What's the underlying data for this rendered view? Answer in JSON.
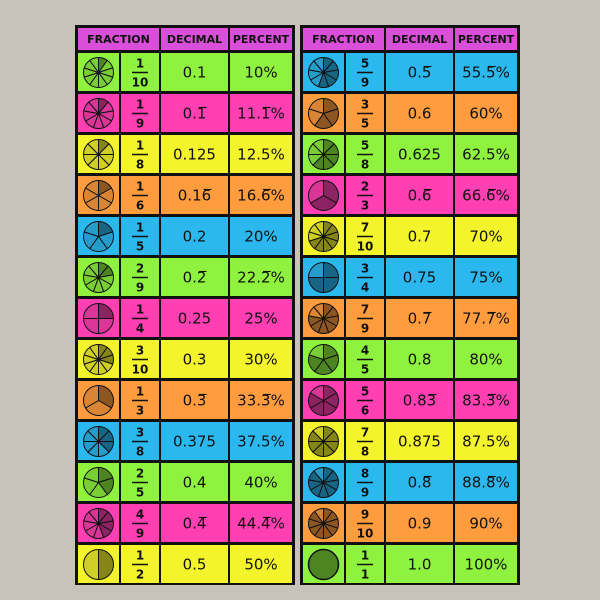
{
  "tables": [
    {
      "headers": [
        "FRACTION",
        "DECIMAL",
        "PERCENT"
      ],
      "header_color": "#d94fd9",
      "rows": [
        {
          "numerator": 1,
          "denominator": 10,
          "decimal": "0.1",
          "percent": "10%",
          "color": "#8ef23f"
        },
        {
          "numerator": 1,
          "denominator": 9,
          "decimal": "0.1̅",
          "percent": "11.1̅%",
          "color": "#ff3fb2"
        },
        {
          "numerator": 1,
          "denominator": 8,
          "decimal": "0.125",
          "percent": "12.5%",
          "color": "#f4f42c"
        },
        {
          "numerator": 1,
          "denominator": 6,
          "decimal": "0.16̅",
          "percent": "16.6̅%",
          "color": "#ff9c3e"
        },
        {
          "numerator": 1,
          "denominator": 5,
          "decimal": "0.2",
          "percent": "20%",
          "color": "#2bb8ee"
        },
        {
          "numerator": 2,
          "denominator": 9,
          "decimal": "0.2̅",
          "percent": "22.2̅%",
          "color": "#8ef23f"
        },
        {
          "numerator": 1,
          "denominator": 4,
          "decimal": "0.25",
          "percent": "25%",
          "color": "#ff3fb2"
        },
        {
          "numerator": 3,
          "denominator": 10,
          "decimal": "0.3",
          "percent": "30%",
          "color": "#f4f42c"
        },
        {
          "numerator": 1,
          "denominator": 3,
          "decimal": "0.3̅",
          "percent": "33.3̅%",
          "color": "#ff9c3e"
        },
        {
          "numerator": 3,
          "denominator": 8,
          "decimal": "0.375",
          "percent": "37.5%",
          "color": "#2bb8ee"
        },
        {
          "numerator": 2,
          "denominator": 5,
          "decimal": "0.4",
          "percent": "40%",
          "color": "#8ef23f"
        },
        {
          "numerator": 4,
          "denominator": 9,
          "decimal": "0.4̅",
          "percent": "44.4̅%",
          "color": "#ff3fb2"
        },
        {
          "numerator": 1,
          "denominator": 2,
          "decimal": "0.5",
          "percent": "50%",
          "color": "#f4f42c"
        }
      ]
    },
    {
      "headers": [
        "FRACTION",
        "DECIMAL",
        "PERCENT"
      ],
      "header_color": "#d94fd9",
      "rows": [
        {
          "numerator": 5,
          "denominator": 9,
          "decimal": "0.5̅",
          "percent": "55.5̅%",
          "color": "#2bb8ee"
        },
        {
          "numerator": 3,
          "denominator": 5,
          "decimal": "0.6",
          "percent": "60%",
          "color": "#ff9c3e"
        },
        {
          "numerator": 5,
          "denominator": 8,
          "decimal": "0.625",
          "percent": "62.5%",
          "color": "#8ef23f"
        },
        {
          "numerator": 2,
          "denominator": 3,
          "decimal": "0.6̅",
          "percent": "66.6̅%",
          "color": "#ff3fb2"
        },
        {
          "numerator": 7,
          "denominator": 10,
          "decimal": "0.7",
          "percent": "70%",
          "color": "#f4f42c"
        },
        {
          "numerator": 3,
          "denominator": 4,
          "decimal": "0.75",
          "percent": "75%",
          "color": "#2bb8ee"
        },
        {
          "numerator": 7,
          "denominator": 9,
          "decimal": "0.7̅",
          "percent": "77.7̅%",
          "color": "#ff9c3e"
        },
        {
          "numerator": 4,
          "denominator": 5,
          "decimal": "0.8",
          "percent": "80%",
          "color": "#8ef23f"
        },
        {
          "numerator": 5,
          "denominator": 6,
          "decimal": "0.83̅",
          "percent": "83.3̅%",
          "color": "#ff3fb2"
        },
        {
          "numerator": 7,
          "denominator": 8,
          "decimal": "0.875",
          "percent": "87.5%",
          "color": "#f4f42c"
        },
        {
          "numerator": 8,
          "denominator": 9,
          "decimal": "0.8̅",
          "percent": "88.8̅%",
          "color": "#2bb8ee"
        },
        {
          "numerator": 9,
          "denominator": 10,
          "decimal": "0.9",
          "percent": "90%",
          "color": "#ff9c3e"
        },
        {
          "numerator": 1,
          "denominator": 1,
          "decimal": "1.0",
          "percent": "100%",
          "color": "#8ef23f"
        }
      ]
    }
  ]
}
